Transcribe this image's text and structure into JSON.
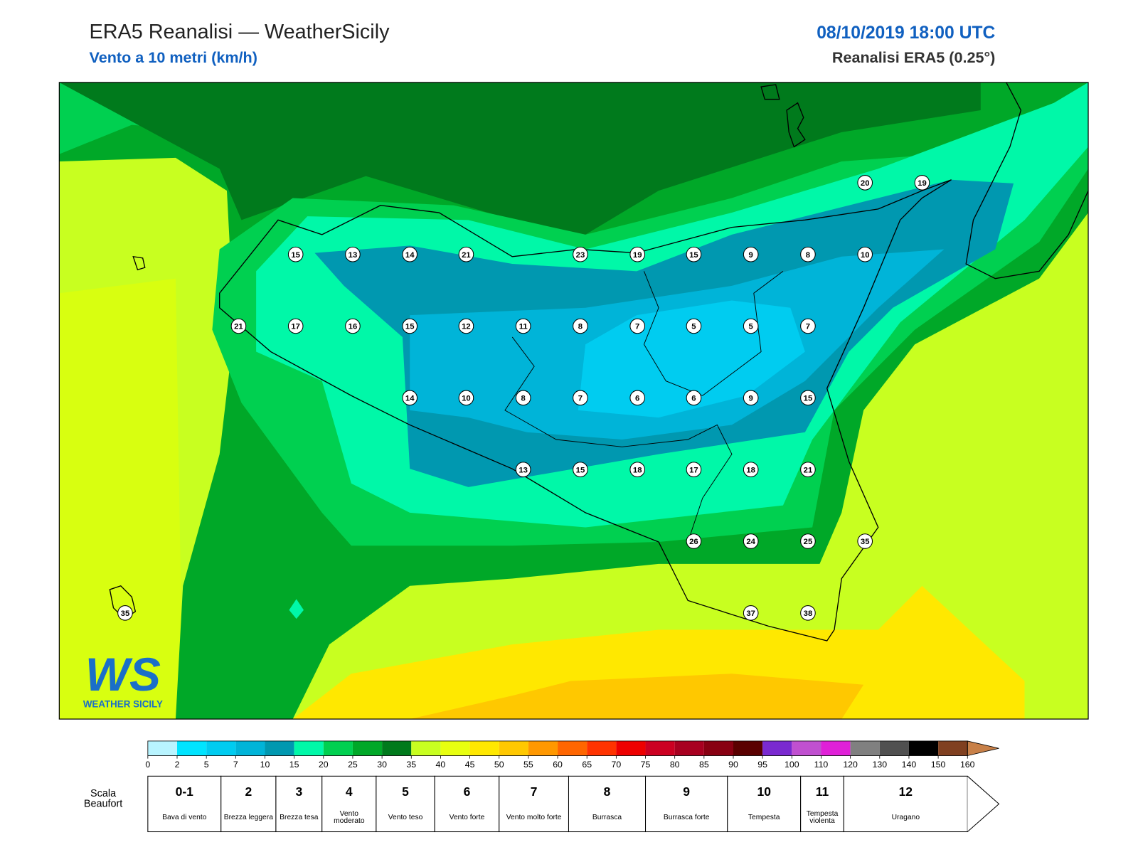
{
  "header": {
    "title": "ERA5 Reanalisi — WeatherSicily",
    "subtitle": "Vento a 10 metri (km/h)",
    "datetime": "08/10/2019 18:00 UTC",
    "source": "Reanalisi ERA5 (0.25°)"
  },
  "map": {
    "points": [
      20,
      19,
      15,
      13,
      14,
      21,
      23,
      19,
      15,
      9,
      8,
      10,
      21,
      17,
      16,
      15,
      12,
      11,
      8,
      7,
      5,
      5,
      7,
      14,
      10,
      8,
      7,
      6,
      6,
      9,
      15,
      13,
      15,
      18,
      17,
      18,
      21,
      26,
      24,
      25,
      35,
      35,
      37,
      38
    ]
  },
  "logo": {
    "mark": "WS",
    "name": "WEATHER SICILY"
  },
  "colorbar": {
    "ticks": [
      0,
      2,
      5,
      7,
      10,
      15,
      20,
      25,
      30,
      35,
      40,
      45,
      50,
      55,
      60,
      65,
      70,
      75,
      80,
      85,
      90,
      95,
      100,
      110,
      120,
      130,
      140,
      150,
      160
    ],
    "colors": [
      "#b8f4ff",
      "#00e4ff",
      "#00ccf0",
      "#00b4d8",
      "#0098b0",
      "#00f8a8",
      "#00d050",
      "#00a828",
      "#007a1c",
      "#c8ff20",
      "#e8ff10",
      "#ffe800",
      "#ffc800",
      "#ff9800",
      "#ff6600",
      "#ff3300",
      "#ee0000",
      "#cc0022",
      "#a80020",
      "#880012",
      "#5a0000",
      "#7a2ad0",
      "#c050d0",
      "#e020d8",
      "#808080",
      "#505050",
      "#000000",
      "#804020",
      "#c88048"
    ]
  },
  "beaufort": {
    "title": "Scala Beaufort",
    "levels": [
      {
        "force": "0-1",
        "label": "Bava di vento"
      },
      {
        "force": "2",
        "label": "Brezza leggera"
      },
      {
        "force": "3",
        "label": "Brezza tesa"
      },
      {
        "force": "4",
        "label": "Vento moderato"
      },
      {
        "force": "5",
        "label": "Vento teso"
      },
      {
        "force": "6",
        "label": "Vento forte"
      },
      {
        "force": "7",
        "label": "Vento molto forte"
      },
      {
        "force": "8",
        "label": "Burrasca"
      },
      {
        "force": "9",
        "label": "Burrasca forte"
      },
      {
        "force": "10",
        "label": "Tempesta"
      },
      {
        "force": "11",
        "label": "Tempesta violenta"
      },
      {
        "force": "12",
        "label": "Uragano"
      }
    ]
  }
}
